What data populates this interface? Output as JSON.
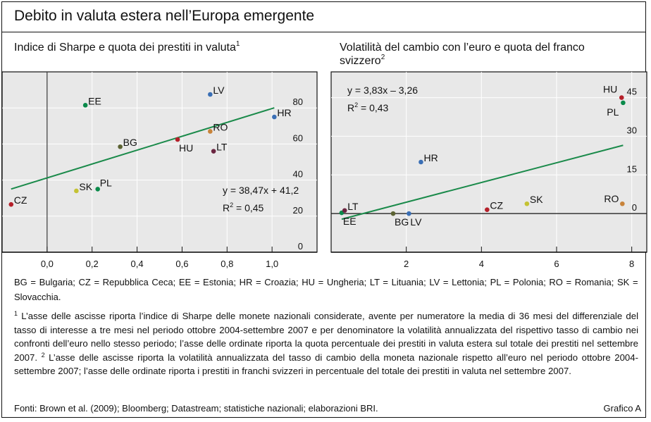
{
  "header": {
    "title": "Debito in valuta estera nell’Europa emergente"
  },
  "chart_data": [
    {
      "type": "scatter",
      "title": "Indice di Sharpe e quota dei prestiti in valuta",
      "title_footnote": "1",
      "xlabel": "",
      "ylabel": "",
      "xlim": [
        -0.2,
        1.2
      ],
      "ylim": [
        0,
        100
      ],
      "x_ticks": [
        0.0,
        0.2,
        0.4,
        0.6,
        0.8,
        1.0
      ],
      "x_tick_labels": [
        "0,0",
        "0,2",
        "0,4",
        "0,6",
        "0,8",
        "1,0"
      ],
      "y_ticks": [
        0,
        20,
        40,
        60,
        80
      ],
      "y_tick_labels": [
        "0",
        "20",
        "40",
        "60",
        "80"
      ],
      "y_axis_side": "right",
      "grid": true,
      "zero_line": "vertical at x=0",
      "points": [
        {
          "label": "CZ",
          "x": -0.16,
          "y": 26.5,
          "color": "#b5202a",
          "label_pos": "right"
        },
        {
          "label": "SK",
          "x": 0.13,
          "y": 34,
          "color": "#c4c233",
          "label_pos": "right"
        },
        {
          "label": "PL",
          "x": 0.225,
          "y": 35,
          "color": "#0a8a4a",
          "label_pos": "upper-right"
        },
        {
          "label": "EE",
          "x": 0.17,
          "y": 81.5,
          "color": "#0a8a4a",
          "label_pos": "right"
        },
        {
          "label": "BG",
          "x": 0.325,
          "y": 58.5,
          "color": "#5c6333",
          "label_pos": "right"
        },
        {
          "label": "HU",
          "x": 0.58,
          "y": 62.5,
          "color": "#b5202a",
          "label_pos": "below"
        },
        {
          "label": "LV",
          "x": 0.725,
          "y": 87.5,
          "color": "#3a6fb5",
          "label_pos": "right"
        },
        {
          "label": "RO",
          "x": 0.725,
          "y": 67,
          "color": "#c8833a",
          "label_pos": "right"
        },
        {
          "label": "LT",
          "x": 0.74,
          "y": 56,
          "color": "#6b2641",
          "label_pos": "right"
        },
        {
          "label": "HR",
          "x": 1.01,
          "y": 75,
          "color": "#3a6fb5",
          "label_pos": "right"
        }
      ],
      "regression": {
        "slope": 38.47,
        "intercept": 41.2,
        "x_range": [
          -0.16,
          1.01
        ],
        "color": "#1a8a4a"
      },
      "annotations": {
        "equation": "y = 38,47x + 41,2",
        "r2_prefix": "R",
        "r2_sup": "2",
        "r2_value": " = 0,45"
      }
    },
    {
      "type": "scatter",
      "title": "Volatilità del cambio con l’euro e quota del franco svizzero",
      "title_line1": "Volatilità del cambio con l’euro e quota del franco",
      "title_line2": "svizzero",
      "title_footnote": "2",
      "xlabel": "",
      "ylabel": "",
      "xlim": [
        0,
        8.4
      ],
      "ylim": [
        -15,
        55
      ],
      "x_ticks": [
        2,
        4,
        6,
        8
      ],
      "x_tick_labels": [
        "2",
        "4",
        "6",
        "8"
      ],
      "y_ticks": [
        0,
        15,
        30,
        45
      ],
      "y_tick_labels": [
        "0",
        "15",
        "30",
        "45"
      ],
      "y_axis_side": "right",
      "grid": true,
      "zero_line": "horizontal at y=0",
      "points": [
        {
          "label": "EE",
          "x": 0.28,
          "y": 0.3,
          "color": "#0a8a4a",
          "label_pos": "below"
        },
        {
          "label": "LT",
          "x": 0.36,
          "y": 1.2,
          "color": "#6b2641",
          "label_pos": "right"
        },
        {
          "label": "BG",
          "x": 1.65,
          "y": 0,
          "color": "#5c6333",
          "label_pos": "below"
        },
        {
          "label": "LV",
          "x": 2.07,
          "y": 0,
          "color": "#3a6fb5",
          "label_pos": "below-right"
        },
        {
          "label": "HR",
          "x": 2.39,
          "y": 20,
          "color": "#3a6fb5",
          "label_pos": "right"
        },
        {
          "label": "CZ",
          "x": 4.15,
          "y": 1.5,
          "color": "#b5202a",
          "label_pos": "right"
        },
        {
          "label": "SK",
          "x": 5.21,
          "y": 3.8,
          "color": "#c4c233",
          "label_pos": "right"
        },
        {
          "label": "RO",
          "x": 7.75,
          "y": 3.8,
          "color": "#c8833a",
          "label_pos": "left"
        },
        {
          "label": "HU",
          "x": 7.73,
          "y": 45,
          "color": "#b5202a",
          "label_pos": "upper-left"
        },
        {
          "label": "PL",
          "x": 7.77,
          "y": 43,
          "color": "#0a8a4a",
          "label_pos": "below-left"
        }
      ],
      "regression": {
        "slope": 3.83,
        "intercept": -3.26,
        "x_range": [
          0.28,
          7.77
        ],
        "color": "#1a8a4a"
      },
      "annotations": {
        "equation": "y = 3,83x – 3,26",
        "r2_prefix": "R",
        "r2_sup": "2",
        "r2_value": " = 0,43"
      }
    }
  ],
  "legend": {
    "text": "BG = Bulgaria;  CZ = Repubblica  Ceca;  EE = Estonia;  HR = Croazia;  HU = Ungheria;  LT = Lituania;  LV = Lettonia;  PL = Polonia;  RO = Romania;  SK = Slovacchia."
  },
  "notes": {
    "note1_marker": "1",
    "note1_text": " L’asse delle ascisse riporta l’indice di Sharpe delle monete nazionali considerate, avente per numeratore la media di 36 mesi del differenziale del tasso di interesse a tre mesi nel periodo ottobre 2004-settembre 2007 e per denominatore la volatilità annualizzata del rispettivo tasso di cambio nei confronti dell’euro nello stesso periodo; l’asse delle ordinate riporta la quota percentuale dei prestiti in valuta estera sul totale dei prestiti nel settembre 2007.  ",
    "note2_marker": "2",
    "note2_text": " L’asse delle ascisse riporta la volatilità annualizzata del tasso di cambio della moneta nazionale rispetto all’euro nel periodo ottobre 2004-settembre 2007; l’asse delle ordinate riporta i prestiti in franchi svizzeri in percentuale del totale dei prestiti in valuta nel settembre 2007."
  },
  "footer": {
    "sources": "Fonti: Brown et al. (2009); Bloomberg; Datastream; statistiche nazionali; elaborazioni BRI.",
    "chart_id": "Grafico A"
  }
}
